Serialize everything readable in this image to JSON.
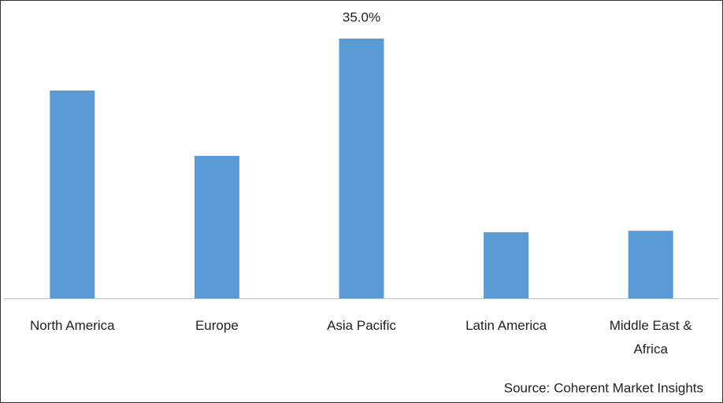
{
  "chart_data": {
    "type": "bar",
    "categories": [
      "North America",
      "Europe",
      "Asia Pacific",
      "Latin America",
      "Middle East & Africa"
    ],
    "values": [
      28.0,
      19.2,
      35.0,
      8.9,
      9.1
    ],
    "value_labels": [
      null,
      null,
      "35.0%",
      null,
      null
    ],
    "color": "#5b9bd5",
    "source": "Source: Coherent Market Insights"
  }
}
